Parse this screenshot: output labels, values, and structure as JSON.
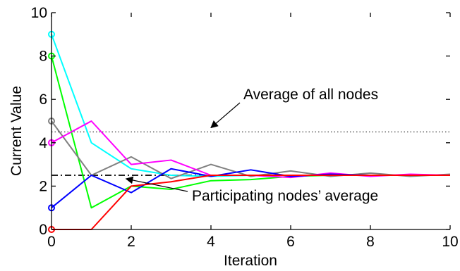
{
  "chart_data": {
    "type": "line",
    "title": "",
    "xlabel": "Iteration",
    "ylabel": "Current Value",
    "xlim": [
      0,
      10
    ],
    "ylim": [
      0,
      10
    ],
    "xticks": [
      "0",
      "2",
      "4",
      "6",
      "8",
      "10"
    ],
    "yticks": [
      "0",
      "2",
      "4",
      "6",
      "8",
      "10"
    ],
    "grid": false,
    "x": [
      0,
      1,
      2,
      3,
      4,
      5,
      6,
      7,
      8,
      9,
      10
    ],
    "series": [
      {
        "color": "#00ffff",
        "values": [
          9,
          4,
          2.8,
          2.5,
          2.45,
          2.5,
          2.5,
          2.5,
          2.5,
          2.5,
          2.5
        ]
      },
      {
        "color": "#00ff00",
        "values": [
          8,
          1,
          2,
          1.85,
          2.25,
          2.3,
          2.45,
          2.5,
          2.5,
          2.5,
          2.5
        ]
      },
      {
        "color": "#808080",
        "values": [
          5,
          2.5,
          3.35,
          2.35,
          3,
          2.45,
          2.7,
          2.45,
          2.6,
          2.45,
          2.55
        ]
      },
      {
        "color": "#ff00ff",
        "values": [
          4,
          5,
          3,
          3.2,
          2.5,
          2.5,
          2.4,
          2.6,
          2.45,
          2.55,
          2.5
        ]
      },
      {
        "color": "#0000ff",
        "values": [
          1,
          2.5,
          1.7,
          2.8,
          2.45,
          2.75,
          2.45,
          2.55,
          2.5,
          2.5,
          2.5
        ]
      },
      {
        "color": "#ff0000",
        "values": [
          0,
          0,
          2,
          2.2,
          2.5,
          2.5,
          2.5,
          2.5,
          2.5,
          2.5,
          2.5
        ]
      }
    ],
    "reference_lines": [
      {
        "y": 4.5,
        "style": "dotted",
        "color": "#000000"
      },
      {
        "y": 2.5,
        "style": "dash-dot",
        "color": "#000000"
      }
    ],
    "annotations": [
      {
        "text": "Average of all nodes",
        "points_to": [
          4,
          4.5
        ]
      },
      {
        "text": "Participating nodes’ average",
        "points_to": [
          1.8,
          2.5
        ]
      }
    ]
  }
}
